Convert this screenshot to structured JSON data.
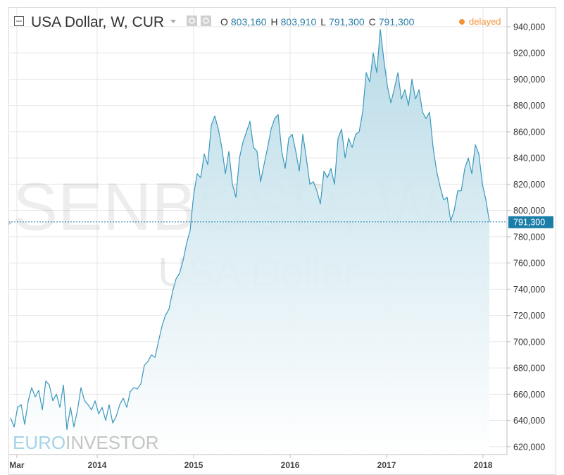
{
  "chart_data": {
    "type": "area",
    "title": "USA Dollar, W, CUR",
    "ohlc": [
      {
        "key": "O",
        "value": "803,160"
      },
      {
        "key": "H",
        "value": "803,910"
      },
      {
        "key": "L",
        "value": "791,300"
      },
      {
        "key": "C",
        "value": "791,300"
      }
    ],
    "status": "delayed",
    "watermark": [
      "SENBUSD, W",
      "USA Dollar"
    ],
    "logo": [
      "EURO",
      "INVESTOR"
    ],
    "last_label": "791,300",
    "color": "#3b98bd",
    "grid": true,
    "xlim": [
      2013.08,
      2018.248
    ],
    "xticks": [
      {
        "value": 2013.167,
        "label": "Mar"
      },
      2014,
      2015,
      2016,
      2017,
      2018
    ],
    "ylim": [
      614000,
      955000
    ],
    "yticks": [
      {
        "value": 620000,
        "label": "620,000"
      },
      {
        "value": 640000,
        "label": "640,000"
      },
      {
        "value": 660000,
        "label": "660,000"
      },
      {
        "value": 680000,
        "label": "680,000"
      },
      {
        "value": 700000,
        "label": "700,000"
      },
      {
        "value": 720000,
        "label": "720,000"
      },
      {
        "value": 740000,
        "label": "740,000"
      },
      {
        "value": 760000,
        "label": "760,000"
      },
      {
        "value": 780000,
        "label": "780,000"
      },
      {
        "value": 800000,
        "label": "800,000"
      },
      {
        "value": 820000,
        "label": "820,000"
      },
      {
        "value": 840000,
        "label": "840,000"
      },
      {
        "value": 860000,
        "label": "860,000"
      },
      {
        "value": 880000,
        "label": "880,000"
      },
      {
        "value": 900000,
        "label": "900,000"
      },
      {
        "value": 920000,
        "label": "920,000"
      },
      {
        "value": 940000,
        "label": "940,000"
      }
    ],
    "x": [
      2013.102,
      2013.139,
      2013.175,
      2013.212,
      2013.248,
      2013.285,
      2013.321,
      2013.358,
      2013.394,
      2013.431,
      2013.467,
      2013.504,
      2013.54,
      2013.577,
      2013.613,
      2013.65,
      2013.686,
      2013.723,
      2013.759,
      2013.796,
      2013.832,
      2013.869,
      2013.905,
      2013.942,
      2013.978,
      2014.015,
      2014.051,
      2014.088,
      2014.124,
      2014.161,
      2014.197,
      2014.234,
      2014.27,
      2014.307,
      2014.343,
      2014.38,
      2014.416,
      2014.453,
      2014.489,
      2014.526,
      2014.562,
      2014.599,
      2014.635,
      2014.672,
      2014.708,
      2014.745,
      2014.781,
      2014.818,
      2014.854,
      2014.891,
      2014.927,
      2014.964,
      2015.0,
      2015.037,
      2015.073,
      2015.11,
      2015.146,
      2015.183,
      2015.219,
      2015.256,
      2015.292,
      2015.329,
      2015.365,
      2015.402,
      2015.438,
      2015.475,
      2015.511,
      2015.548,
      2015.584,
      2015.621,
      2015.657,
      2015.694,
      2015.73,
      2015.767,
      2015.803,
      2015.84,
      2015.876,
      2015.913,
      2015.949,
      2015.986,
      2016.022,
      2016.059,
      2016.095,
      2016.132,
      2016.168,
      2016.205,
      2016.241,
      2016.278,
      2016.314,
      2016.351,
      2016.387,
      2016.424,
      2016.46,
      2016.497,
      2016.533,
      2016.57,
      2016.606,
      2016.643,
      2016.679,
      2016.716,
      2016.752,
      2016.789,
      2016.825,
      2016.862,
      2016.898,
      2016.935,
      2016.971,
      2017.008,
      2017.044,
      2017.081,
      2017.117,
      2017.154,
      2017.19,
      2017.227,
      2017.263,
      2017.3,
      2017.336,
      2017.373,
      2017.409,
      2017.446,
      2017.482,
      2017.519,
      2017.555,
      2017.592,
      2017.628,
      2017.665,
      2017.701,
      2017.738,
      2017.774,
      2017.811,
      2017.847,
      2017.884,
      2017.92,
      2017.957,
      2017.993,
      2018.03,
      2018.066
    ],
    "values": [
      642000,
      635000,
      650000,
      652000,
      637000,
      655000,
      665000,
      658000,
      663000,
      648000,
      670000,
      667000,
      655000,
      660000,
      650000,
      667000,
      633000,
      650000,
      635000,
      648000,
      665000,
      655000,
      652000,
      648000,
      655000,
      645000,
      650000,
      640000,
      652000,
      638000,
      643000,
      652000,
      657000,
      650000,
      662000,
      665000,
      664000,
      668000,
      682000,
      685000,
      690000,
      688000,
      700000,
      712000,
      720000,
      725000,
      738000,
      748000,
      752000,
      762000,
      775000,
      785000,
      812000,
      828000,
      825000,
      843000,
      835000,
      865000,
      872000,
      862000,
      848000,
      828000,
      845000,
      820000,
      810000,
      840000,
      852000,
      860000,
      868000,
      848000,
      845000,
      822000,
      835000,
      848000,
      862000,
      870000,
      873000,
      845000,
      832000,
      855000,
      858000,
      845000,
      830000,
      858000,
      840000,
      820000,
      822000,
      815000,
      805000,
      830000,
      825000,
      832000,
      820000,
      855000,
      862000,
      840000,
      855000,
      848000,
      858000,
      860000,
      875000,
      905000,
      898000,
      920000,
      905000,
      938000,
      915000,
      895000,
      882000,
      893000,
      905000,
      885000,
      892000,
      880000,
      900000,
      885000,
      892000,
      875000,
      870000,
      875000,
      848000,
      830000,
      818000,
      808000,
      810000,
      792000,
      800000,
      815000,
      815000,
      832000,
      840000,
      828000,
      850000,
      843000,
      820000,
      808000,
      791300
    ]
  }
}
